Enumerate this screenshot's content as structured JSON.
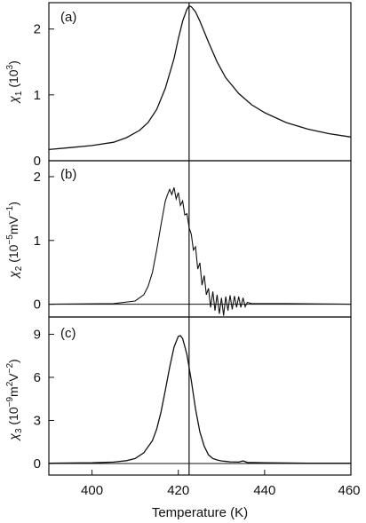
{
  "chart_data": [
    {
      "type": "line",
      "panel_label": "(a)",
      "ylabel_main": "χ",
      "ylabel_sub": "1",
      "ylabel_rest": " (10",
      "ylabel_exp": "3",
      "ylabel_close": ")",
      "xlabel": "",
      "ylim": [
        0,
        2.4
      ],
      "yticks": [
        0,
        1,
        2
      ],
      "x": [
        390,
        395,
        400,
        405,
        408,
        411,
        413,
        415,
        417,
        419,
        420,
        421,
        422,
        422.5,
        423,
        424,
        425,
        427,
        429,
        431,
        434,
        437,
        440,
        445,
        450,
        455,
        460
      ],
      "y": [
        0.17,
        0.2,
        0.23,
        0.28,
        0.35,
        0.46,
        0.58,
        0.78,
        1.1,
        1.55,
        1.85,
        2.12,
        2.3,
        2.35,
        2.34,
        2.26,
        2.12,
        1.8,
        1.5,
        1.26,
        1.02,
        0.85,
        0.73,
        0.58,
        0.48,
        0.41,
        0.36
      ]
    },
    {
      "type": "line",
      "panel_label": "(b)",
      "ylabel_main": "χ",
      "ylabel_sub": "2",
      "ylabel_rest": " (10",
      "ylabel_exp": "−5",
      "ylabel_close": "mV",
      "ylabel_exp2": "−1",
      "ylabel_close2": ")",
      "xlabel": "",
      "ylim": [
        -0.2,
        2.25
      ],
      "yticks": [
        0,
        1,
        2
      ],
      "x": [
        390,
        405,
        410,
        412,
        413,
        414,
        415,
        416,
        417,
        417.5,
        418,
        418.5,
        419,
        419.5,
        420,
        420.5,
        421,
        421.5,
        422,
        422.5,
        423,
        423.5,
        424,
        424.5,
        425,
        425.5,
        426,
        426.5,
        427,
        427.5,
        428,
        428.5,
        429,
        429.5,
        430,
        430.5,
        431,
        431.5,
        432,
        432.5,
        433,
        433.5,
        434,
        434.5,
        435,
        435.5,
        436,
        437,
        445,
        460
      ],
      "y": [
        0,
        0.01,
        0.05,
        0.15,
        0.28,
        0.5,
        0.85,
        1.25,
        1.62,
        1.72,
        1.8,
        1.72,
        1.83,
        1.65,
        1.75,
        1.55,
        1.62,
        1.4,
        1.42,
        1.2,
        1.1,
        0.85,
        0.9,
        0.55,
        0.65,
        0.3,
        0.45,
        0.15,
        0.25,
        -0.05,
        0.2,
        -0.1,
        0.15,
        -0.15,
        0.1,
        -0.18,
        0.12,
        -0.1,
        0.14,
        -0.08,
        0.13,
        -0.05,
        0.12,
        -0.05,
        0.1,
        -0.04,
        0.03,
        0.01,
        0.01,
        0.0
      ]
    },
    {
      "type": "line",
      "panel_label": "(c)",
      "ylabel_main": "χ",
      "ylabel_sub": "3",
      "ylabel_rest": " (10",
      "ylabel_exp": "−9",
      "ylabel_close": "m",
      "ylabel_exp2": "2",
      "ylabel_close2": "V",
      "ylabel_exp3": "−2",
      "ylabel_close3": ")",
      "xlabel": "Temperature (K)",
      "ylim": [
        -0.8,
        10.2
      ],
      "yticks": [
        0,
        3,
        6,
        9
      ],
      "xlim": [
        390,
        460
      ],
      "xticks": [
        400,
        420,
        440,
        460
      ],
      "x": [
        390,
        400,
        405,
        408,
        410,
        412,
        414,
        415,
        416,
        417,
        418,
        419,
        420,
        420.5,
        421,
        422,
        423,
        424,
        425,
        426,
        427,
        428,
        429,
        430,
        432,
        434,
        435,
        436,
        440,
        450,
        460
      ],
      "y": [
        0.02,
        0.05,
        0.1,
        0.2,
        0.35,
        0.75,
        1.6,
        2.4,
        3.6,
        5.1,
        6.7,
        8.1,
        8.85,
        8.9,
        8.7,
        7.6,
        5.8,
        3.8,
        2.2,
        1.2,
        0.6,
        0.35,
        0.25,
        0.18,
        0.12,
        0.1,
        0.18,
        0.08,
        0.05,
        0.02,
        0.02
      ]
    }
  ],
  "vertical_line_x": 422.5
}
